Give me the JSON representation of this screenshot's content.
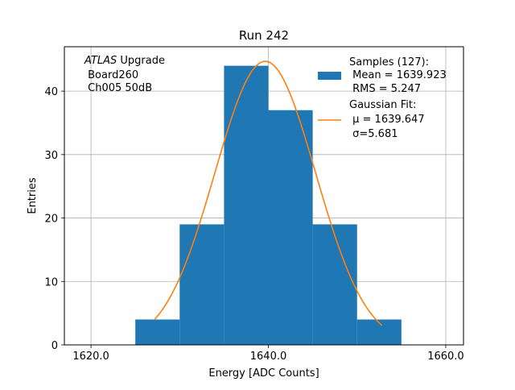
{
  "chart_data": {
    "type": "bar",
    "title": "Run 242",
    "xlabel": "Energy [ADC Counts]",
    "ylabel": "Entries",
    "xlim": [
      1617,
      1662
    ],
    "ylim": [
      0,
      47
    ],
    "x_ticks": [
      1620,
      1640,
      1660
    ],
    "x_tick_labels": [
      "1620.0",
      "1640.0",
      "1660.0"
    ],
    "y_ticks": [
      0,
      10,
      20,
      30,
      40
    ],
    "y_tick_labels": [
      "0",
      "10",
      "20",
      "30",
      "40"
    ],
    "grid": true,
    "legend_position": "top-right",
    "histogram": {
      "name": "Samples (127):",
      "stats": [
        " Mean = 1639.923",
        " RMS = 5.247"
      ],
      "color": "#1f77b4",
      "bins": [
        {
          "x0": 1625,
          "x1": 1630,
          "value": 4
        },
        {
          "x0": 1630,
          "x1": 1635,
          "value": 19
        },
        {
          "x0": 1635,
          "x1": 1640,
          "value": 44
        },
        {
          "x0": 1640,
          "x1": 1645,
          "value": 37
        },
        {
          "x0": 1645,
          "x1": 1650,
          "value": 19
        },
        {
          "x0": 1650,
          "x1": 1655,
          "value": 4
        }
      ]
    },
    "fit": {
      "name": "Gaussian Fit:",
      "stats": [
        " μ = 1639.647",
        " σ=5.681"
      ],
      "color": "#ff7f0e",
      "mu": 1639.647,
      "sigma": 5.681,
      "amplitude": 44.7,
      "x_range": [
        1627.2,
        1652.8
      ]
    },
    "annotation": {
      "italic": "ATLAS",
      "rest": " Upgrade",
      "lines": [
        " Board260",
        " Ch005 50dB"
      ]
    }
  }
}
